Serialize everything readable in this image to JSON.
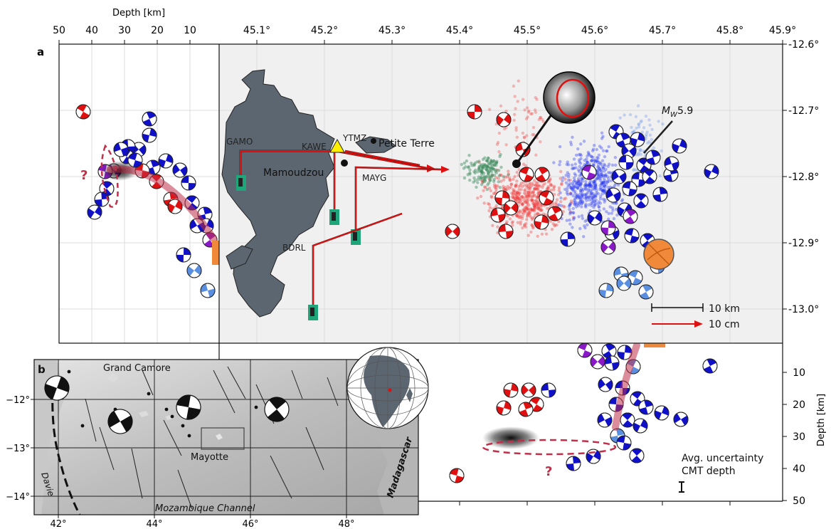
{
  "panel_a": {
    "label": "a",
    "top_axis_label": "Depth [km]",
    "depth_ticks": [
      "50",
      "40",
      "30",
      "20",
      "10"
    ],
    "lon_ticks": [
      "45.1°",
      "45.2°",
      "45.3°",
      "45.4°",
      "45.5°",
      "45.6°",
      "45.7°",
      "45.8°",
      "45.9°"
    ],
    "lat_ticks": [
      "-12.6°",
      "-12.7°",
      "-12.8°",
      "-12.9°",
      "-13.0°"
    ],
    "stations": [
      "GAMO",
      "KAWE",
      "YTMZ",
      "MAYG",
      "BDRL"
    ],
    "places": [
      "Petite Terre",
      "Mamoudzou"
    ],
    "magnitude_label_prefix": "M",
    "magnitude_label_sub": "W",
    "magnitude_label_value": "5.9",
    "scale_km": "10 km",
    "scale_cm": "10 cm",
    "question_mark": "?",
    "colors": {
      "land": "#5c6670",
      "sea": "#f0f0f0",
      "gps_arrow": "#e01010",
      "station_marker": "#1fa57a",
      "cluster_red": "#f03030",
      "cluster_blue": "#2030f0",
      "cluster_green": "#3a8a5a",
      "cmt_blue": "#1010c8",
      "cmt_red": "#e01010",
      "cmt_purple": "#8a18c8",
      "cmt_light": "#5a8ee0",
      "orange": "#f08a3a",
      "dashed": "#c0304a"
    }
  },
  "depth_section": {
    "axis_label": "Depth [km]",
    "depth_ticks": [
      "10",
      "20",
      "30",
      "40",
      "50"
    ],
    "uncertainty_label_line1": "Avg. uncertainty",
    "uncertainty_label_line2": "CMT depth",
    "question_mark": "?"
  },
  "panel_b": {
    "label": "b",
    "lon_ticks": [
      "42°",
      "44°",
      "46°",
      "48°"
    ],
    "lat_ticks": [
      "−12°",
      "−13°",
      "−14°"
    ],
    "places": {
      "grand_camore": "Grand Camore",
      "mayotte": "Mayotte",
      "mozambique": "Mozambique Channel",
      "madagascar": "Madagascar",
      "davie": "Davie"
    },
    "colors": {
      "relief_light": "#d9d9d9",
      "relief_dark": "#9a9a9a"
    }
  }
}
